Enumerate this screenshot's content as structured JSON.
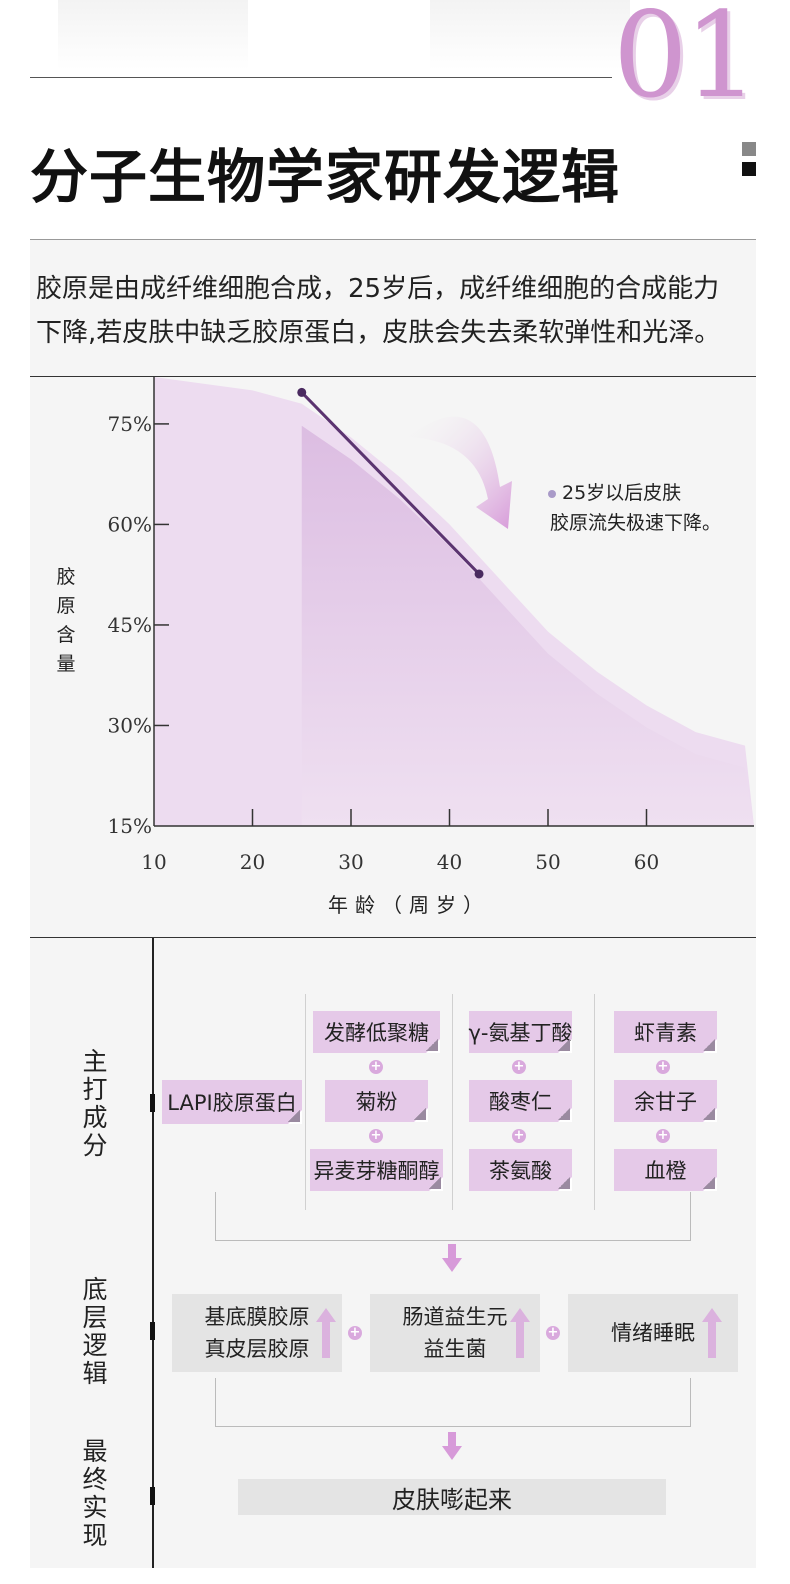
{
  "header": {
    "section_number": "01",
    "title": "分子生物学家研发逻辑"
  },
  "intro": {
    "line1": "胶原是由成纤维细胞合成，25岁后，成纤维细胞的合成能力",
    "line2": "下降,若皮肤中缺乏胶原蛋白，皮肤会失去柔软弹性和光泽。"
  },
  "chart_data": {
    "type": "area",
    "ylabel": "胶原含量",
    "xlabel": "年龄（周岁）",
    "x_ticks": [
      "10",
      "20",
      "30",
      "40",
      "50",
      "60"
    ],
    "y_ticks": [
      "15%",
      "30%",
      "45%",
      "60%",
      "75%"
    ],
    "xlim": [
      10,
      70
    ],
    "ylim": [
      15,
      82
    ],
    "series": [
      {
        "x": [
          10,
          20,
          25,
          30,
          35,
          40,
          45,
          50,
          55,
          60,
          65,
          70
        ],
        "values": [
          82,
          80,
          78,
          73,
          67,
          60,
          52,
          44,
          38,
          33,
          29,
          27
        ]
      }
    ],
    "highlight_segment": {
      "x": [
        25,
        43
      ],
      "y": [
        80,
        55
      ]
    },
    "shaded_from_x": 25,
    "annotation": {
      "line1": "25岁以后皮肤",
      "line2": "胶原流失极速下降。"
    },
    "grid": false
  },
  "ingredients": {
    "section_label": "主打成分",
    "main": "LAPI胶原蛋白",
    "columns": [
      [
        "发酵低聚糖",
        "菊粉",
        "异麦芽糖酮醇"
      ],
      [
        "γ-氨基丁酸",
        "酸枣仁",
        "茶氨酸"
      ],
      [
        "虾青素",
        "余甘子",
        "血橙"
      ]
    ]
  },
  "logic": {
    "section_label": "底层逻辑",
    "boxes": [
      {
        "line1": "基底膜胶原",
        "line2": "真皮层胶原"
      },
      {
        "line1": "肠道益生元",
        "line2": "益生菌"
      },
      {
        "line1": "情绪睡眠",
        "line2": ""
      }
    ]
  },
  "final": {
    "section_label": "最终实现",
    "result": "皮肤嘭起来"
  },
  "colors": {
    "accent": "#cf95cf",
    "chip": "#e5c9e8",
    "line": "#5b3470",
    "area": "#e2c4e6"
  }
}
